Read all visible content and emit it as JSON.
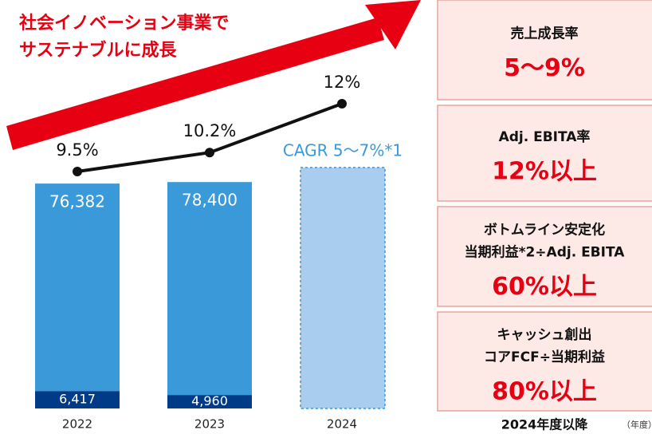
{
  "chart_data": {
    "type": "bar",
    "title": [
      "社会イノベーション事業で",
      "サステナブルに成長"
    ],
    "categories": [
      "2022",
      "2023",
      "2024"
    ],
    "ylim": [
      0,
      84000
    ],
    "y2lim": [
      5,
      14
    ],
    "series": [
      {
        "color": "#003b87",
        "values": [
          6417,
          4960,
          null
        ],
        "value_labels": [
          "6,417",
          "4,960",
          null
        ]
      },
      {
        "color": "#3a9ad9",
        "values": [
          76382,
          78400,
          null
        ],
        "value_labels": [
          "76,382",
          "78,400",
          null
        ]
      },
      {
        "type": "line",
        "axis": "y2",
        "color": "#111111",
        "values": [
          9.5,
          10.2,
          12
        ],
        "value_labels": [
          "9.5%",
          "10.2%",
          "12%"
        ]
      }
    ],
    "annotation": "CAGR 5〜7%*1"
  },
  "targets": [
    {
      "lines": [
        "売上成長率"
      ],
      "value": "5〜9%"
    },
    {
      "lines": [
        "Adj. EBITA率"
      ],
      "value": "12%以上"
    },
    {
      "lines": [
        "ボトムライン安定化",
        "当期利益*2÷Adj. EBITA"
      ],
      "value": "60%以上"
    },
    {
      "lines": [
        "キャッシュ創出",
        "コアFCF÷当期利益"
      ],
      "value": "80%以上"
    }
  ],
  "period_label": "2024年度以降",
  "unit_label": "（年度）"
}
